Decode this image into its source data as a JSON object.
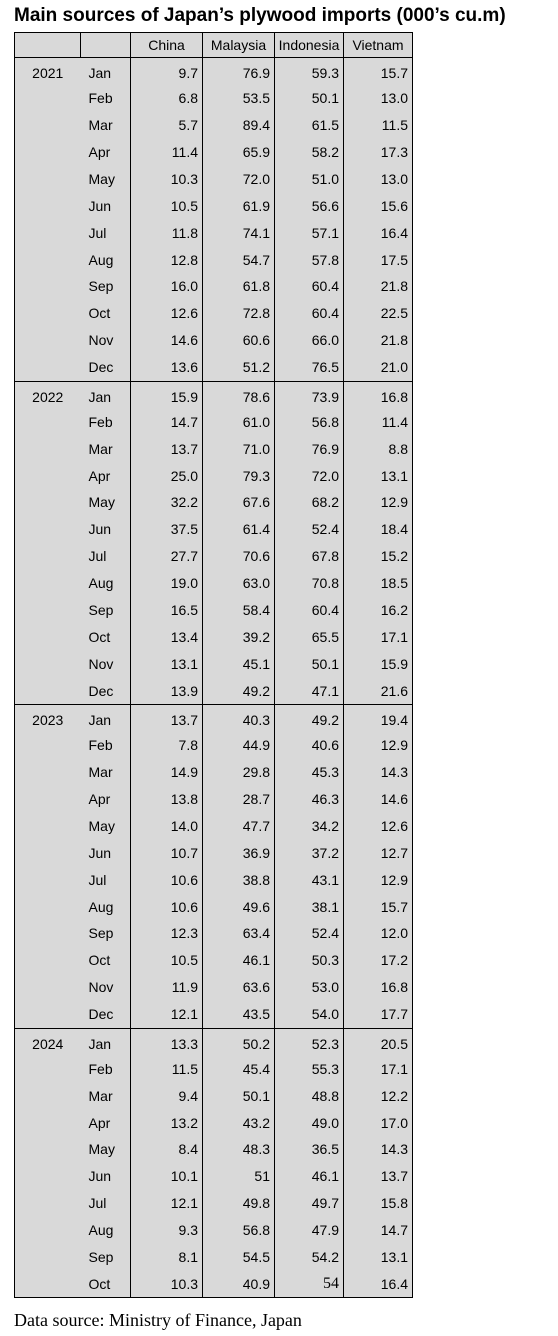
{
  "title": "Main sources of Japan’s plywood imports (000’s cu.m)",
  "source": "Data source: Ministry of Finance, Japan",
  "chart_data": {
    "type": "table",
    "title": "Main sources of Japan’s plywood imports (000’s cu.m)",
    "columns": [
      "",
      "",
      "China",
      "Malaysia",
      "Indonesia",
      "Vietnam"
    ],
    "groups": [
      {
        "year": "2021",
        "rows": [
          {
            "month": "Jan",
            "values": [
              "9.7",
              "76.9",
              "59.3",
              "15.7"
            ]
          },
          {
            "month": "Feb",
            "values": [
              "6.8",
              "53.5",
              "50.1",
              "13.0"
            ]
          },
          {
            "month": "Mar",
            "values": [
              "5.7",
              "89.4",
              "61.5",
              "11.5"
            ]
          },
          {
            "month": "Apr",
            "values": [
              "11.4",
              "65.9",
              "58.2",
              "17.3"
            ]
          },
          {
            "month": "May",
            "values": [
              "10.3",
              "72.0",
              "51.0",
              "13.0"
            ]
          },
          {
            "month": "Jun",
            "values": [
              "10.5",
              "61.9",
              "56.6",
              "15.6"
            ]
          },
          {
            "month": "Jul",
            "values": [
              "11.8",
              "74.1",
              "57.1",
              "16.4"
            ]
          },
          {
            "month": "Aug",
            "values": [
              "12.8",
              "54.7",
              "57.8",
              "17.5"
            ]
          },
          {
            "month": "Sep",
            "values": [
              "16.0",
              "61.8",
              "60.4",
              "21.8"
            ]
          },
          {
            "month": "Oct",
            "values": [
              "12.6",
              "72.8",
              "60.4",
              "22.5"
            ]
          },
          {
            "month": "Nov",
            "values": [
              "14.6",
              "60.6",
              "66.0",
              "21.8"
            ]
          },
          {
            "month": "Dec",
            "values": [
              "13.6",
              "51.2",
              "76.5",
              "21.0"
            ]
          }
        ]
      },
      {
        "year": "2022",
        "rows": [
          {
            "month": "Jan",
            "values": [
              "15.9",
              "78.6",
              "73.9",
              "16.8"
            ]
          },
          {
            "month": "Feb",
            "values": [
              "14.7",
              "61.0",
              "56.8",
              "11.4"
            ]
          },
          {
            "month": "Mar",
            "values": [
              "13.7",
              "71.0",
              "76.9",
              "8.8"
            ]
          },
          {
            "month": "Apr",
            "values": [
              "25.0",
              "79.3",
              "72.0",
              "13.1"
            ]
          },
          {
            "month": "May",
            "values": [
              "32.2",
              "67.6",
              "68.2",
              "12.9"
            ]
          },
          {
            "month": "Jun",
            "values": [
              "37.5",
              "61.4",
              "52.4",
              "18.4"
            ]
          },
          {
            "month": "Jul",
            "values": [
              "27.7",
              "70.6",
              "67.8",
              "15.2"
            ]
          },
          {
            "month": "Aug",
            "values": [
              "19.0",
              "63.0",
              "70.8",
              "18.5"
            ]
          },
          {
            "month": "Sep",
            "values": [
              "16.5",
              "58.4",
              "60.4",
              "16.2"
            ]
          },
          {
            "month": "Oct",
            "values": [
              "13.4",
              "39.2",
              "65.5",
              "17.1"
            ]
          },
          {
            "month": "Nov",
            "values": [
              "13.1",
              "45.1",
              "50.1",
              "15.9"
            ]
          },
          {
            "month": "Dec",
            "values": [
              "13.9",
              "49.2",
              "47.1",
              "21.6"
            ]
          }
        ]
      },
      {
        "year": "2023",
        "rows": [
          {
            "month": "Jan",
            "values": [
              "13.7",
              "40.3",
              "49.2",
              "19.4"
            ]
          },
          {
            "month": "Feb",
            "values": [
              "7.8",
              "44.9",
              "40.6",
              "12.9"
            ]
          },
          {
            "month": "Mar",
            "values": [
              "14.9",
              "29.8",
              "45.3",
              "14.3"
            ]
          },
          {
            "month": "Apr",
            "values": [
              "13.8",
              "28.7",
              "46.3",
              "14.6"
            ]
          },
          {
            "month": "May",
            "values": [
              "14.0",
              "47.7",
              "34.2",
              "12.6"
            ]
          },
          {
            "month": "Jun",
            "values": [
              "10.7",
              "36.9",
              "37.2",
              "12.7"
            ]
          },
          {
            "month": "Jul",
            "values": [
              "10.6",
              "38.8",
              "43.1",
              "12.9"
            ]
          },
          {
            "month": "Aug",
            "values": [
              "10.6",
              "49.6",
              "38.1",
              "15.7"
            ]
          },
          {
            "month": "Sep",
            "values": [
              "12.3",
              "63.4",
              "52.4",
              "12.0"
            ]
          },
          {
            "month": "Oct",
            "values": [
              "10.5",
              "46.1",
              "50.3",
              "17.2"
            ]
          },
          {
            "month": "Nov",
            "values": [
              "11.9",
              "63.6",
              "53.0",
              "16.8"
            ]
          },
          {
            "month": "Dec",
            "values": [
              "12.1",
              "43.5",
              "54.0",
              "17.7"
            ]
          }
        ]
      },
      {
        "year": "2024",
        "rows": [
          {
            "month": "Jan",
            "values": [
              "13.3",
              "50.2",
              "52.3",
              "20.5"
            ]
          },
          {
            "month": "Feb",
            "values": [
              "11.5",
              "45.4",
              "55.3",
              "17.1"
            ]
          },
          {
            "month": "Mar",
            "values": [
              "9.4",
              "50.1",
              "48.8",
              "12.2"
            ]
          },
          {
            "month": "Apr",
            "values": [
              "13.2",
              "43.2",
              "49.0",
              "17.0"
            ]
          },
          {
            "month": "May",
            "values": [
              "8.4",
              "48.3",
              "36.5",
              "14.3"
            ]
          },
          {
            "month": "Jun",
            "values": [
              "10.1",
              "51",
              "46.1",
              "13.7"
            ]
          },
          {
            "month": "Jul",
            "values": [
              "12.1",
              "49.8",
              "49.7",
              "15.8"
            ]
          },
          {
            "month": "Aug",
            "values": [
              "9.3",
              "56.8",
              "47.9",
              "14.7"
            ]
          },
          {
            "month": "Sep",
            "values": [
              "8.1",
              "54.5",
              "54.2",
              "13.1"
            ]
          },
          {
            "month": "Oct",
            "values": [
              "10.3",
              "40.9",
              "54",
              "16.4"
            ]
          }
        ]
      }
    ]
  }
}
